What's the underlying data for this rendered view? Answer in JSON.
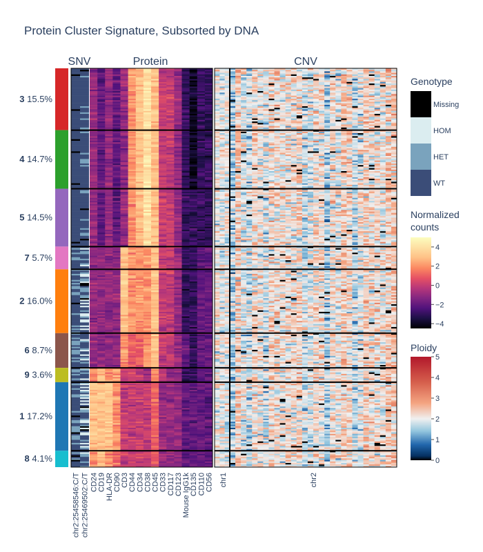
{
  "chart_data": {
    "type": "heatmap",
    "title": "Protein Cluster Signature, Subsorted by DNA",
    "panels": [
      {
        "name": "SNV",
        "x_labels": [
          "chr2:25458546:C/T",
          "chr2:25469502:C/T"
        ]
      },
      {
        "name": "Protein",
        "x_labels": [
          "CD24",
          "CD19",
          "HLA-DR",
          "CD90",
          "CD3",
          "CD44",
          "CD34",
          "CD38",
          "CD45",
          "CD33",
          "CD117",
          "CD123",
          "Mouse IgG1k",
          "CD135",
          "CD110",
          "CD56"
        ]
      },
      {
        "name": "CNV",
        "x_labels": [
          "chr1",
          "chr2"
        ],
        "chr1_amplicons": 3,
        "chr2_amplicons": 30
      }
    ],
    "clusters": [
      {
        "id": "3",
        "pct": "15.5%",
        "fraction": 0.155,
        "color": "#d62728"
      },
      {
        "id": "4",
        "pct": "14.7%",
        "fraction": 0.147,
        "color": "#2ca02c"
      },
      {
        "id": "5",
        "pct": "14.5%",
        "fraction": 0.145,
        "color": "#9467bd"
      },
      {
        "id": "7",
        "pct": "5.7%",
        "fraction": 0.057,
        "color": "#e377c2"
      },
      {
        "id": "2",
        "pct": "16.0%",
        "fraction": 0.16,
        "color": "#ff7f0e"
      },
      {
        "id": "6",
        "pct": "8.7%",
        "fraction": 0.087,
        "color": "#8c564b"
      },
      {
        "id": "9",
        "pct": "3.6%",
        "fraction": 0.036,
        "color": "#bcbd22"
      },
      {
        "id": "1",
        "pct": "17.2%",
        "fraction": 0.172,
        "color": "#1f77b4"
      },
      {
        "id": "8",
        "pct": "4.1%",
        "fraction": 0.041,
        "color": "#17becf"
      }
    ],
    "protein_cluster_means": {
      "3": [
        -1,
        -2,
        -1,
        -2,
        -1,
        2,
        3,
        4,
        3,
        0,
        0,
        -1,
        -3,
        -4,
        -3,
        -3
      ],
      "4": [
        -1,
        -2,
        -1,
        -2,
        -1,
        2,
        3,
        4,
        3,
        0,
        0,
        -1,
        -3,
        -4,
        -3,
        -3
      ],
      "5": [
        -1,
        -2,
        -1,
        -2,
        -1,
        2,
        3,
        4,
        3,
        0,
        0,
        -1,
        -3,
        -3,
        -3,
        -3
      ],
      "7": [
        -1,
        -1,
        -1,
        -1,
        3,
        2,
        2,
        2,
        3,
        0,
        0,
        -1,
        -3,
        -3,
        -2,
        -2
      ],
      "2": [
        -1,
        -1,
        -1,
        -1,
        3,
        2,
        2,
        2,
        3,
        0,
        0,
        -1,
        -3,
        -3,
        -2,
        -2
      ],
      "6": [
        -1,
        -1,
        -1,
        -1,
        2,
        1,
        1,
        2,
        3,
        0,
        0,
        -1,
        -2,
        -3,
        -2,
        -2
      ],
      "9": [
        2,
        3,
        2,
        2,
        0,
        0,
        0,
        -1,
        2,
        0,
        -1,
        -1,
        -3,
        -3,
        -2,
        -2
      ],
      "1": [
        3,
        3,
        3,
        2,
        0,
        0,
        0,
        0,
        1,
        -1,
        -1,
        -1,
        -2,
        -2,
        -2,
        -2
      ],
      "8": [
        2,
        3,
        2,
        1,
        0,
        0,
        0,
        0,
        1,
        -1,
        -1,
        -1,
        -2,
        -2,
        -2,
        -2
      ]
    },
    "genotype_legend": {
      "title": "Genotype",
      "categories": [
        "Missing",
        "HOM",
        "HET",
        "WT"
      ],
      "colors": [
        "#000000",
        "#dbedf0",
        "#7aa3bd",
        "#3b4d78"
      ]
    },
    "normalized_counts_legend": {
      "title": "Normalized counts",
      "range": [
        -4.5,
        5
      ],
      "ticks": [
        "4",
        "2",
        "0",
        "−2",
        "−4"
      ],
      "tick_values": [
        4,
        2,
        0,
        -2,
        -4
      ]
    },
    "ploidy_legend": {
      "title": "Ploidy",
      "range": [
        0,
        5
      ],
      "ticks": [
        "5",
        "4",
        "3",
        "2",
        "1",
        "0"
      ],
      "tick_values": [
        5,
        4,
        3,
        2,
        1,
        0
      ]
    }
  }
}
